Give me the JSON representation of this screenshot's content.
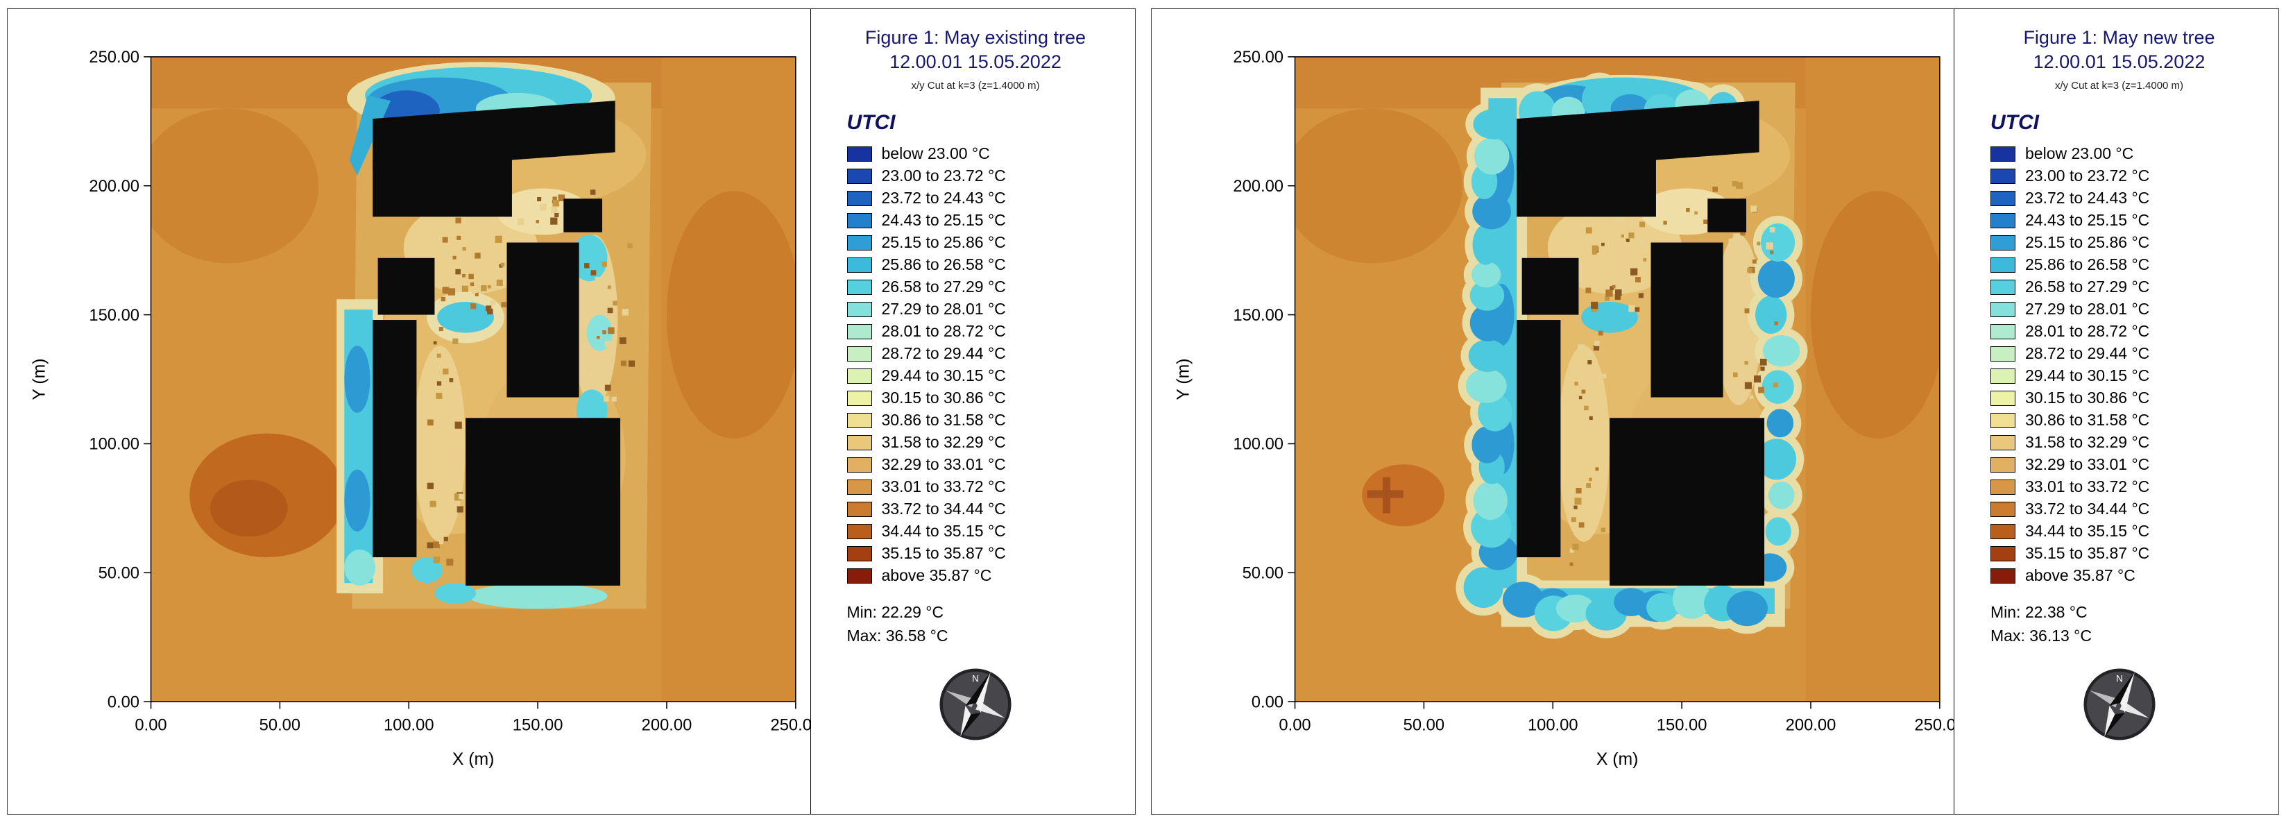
{
  "compass_label": "N",
  "figures": [
    {
      "title": "Figure 1: May existing tree",
      "subtitle": "12.00.01 15.05.2022",
      "cut_note": "x/y Cut at k=3 (z=1.4000 m)",
      "legend_title": "UTCI",
      "min_label": "Min: 22.29 °C",
      "max_label": "Max: 36.58 °C",
      "xlabel": "X (m)",
      "ylabel": "Y (m)",
      "variant": "existing"
    },
    {
      "title": "Figure 1: May new tree",
      "subtitle": "12.00.01 15.05.2022",
      "cut_note": "x/y Cut at k=3 (z=1.4000 m)",
      "legend_title": "UTCI",
      "min_label": "Min: 22.38 °C",
      "max_label": "Max: 36.13 °C",
      "xlabel": "X (m)",
      "ylabel": "Y (m)",
      "variant": "new"
    }
  ],
  "axes": {
    "ticks": [
      "0.00",
      "50.00",
      "100.00",
      "150.00",
      "200.00",
      "250.00"
    ],
    "tick_values": [
      0,
      50,
      100,
      150,
      200,
      250
    ],
    "range": [
      0,
      250
    ]
  },
  "legend_entries": [
    {
      "label": "below 23.00 °C",
      "color": "#1633a0"
    },
    {
      "label": "23.00 to 23.72 °C",
      "color": "#1a47b0"
    },
    {
      "label": "23.72 to 24.43 °C",
      "color": "#1e63c0"
    },
    {
      "label": "24.43 to 25.15 °C",
      "color": "#2380cc"
    },
    {
      "label": "25.15 to 25.86 °C",
      "color": "#2f9ed6"
    },
    {
      "label": "25.86 to 26.58 °C",
      "color": "#3db9dc"
    },
    {
      "label": "26.58 to 27.29 °C",
      "color": "#56cfdf"
    },
    {
      "label": "27.29 to 28.01 °C",
      "color": "#84e0da"
    },
    {
      "label": "28.01 to 28.72 °C",
      "color": "#aeead0"
    },
    {
      "label": "28.72 to 29.44 °C",
      "color": "#c8efc2"
    },
    {
      "label": "29.44 to 30.15 °C",
      "color": "#dcf2b2"
    },
    {
      "label": "30.15 to 30.86 °C",
      "color": "#ecf2a6"
    },
    {
      "label": "30.86 to 31.58 °C",
      "color": "#eedf92"
    },
    {
      "label": "31.58 to 32.29 °C",
      "color": "#e9c87c"
    },
    {
      "label": "32.29 to 33.01 °C",
      "color": "#e2b062"
    },
    {
      "label": "33.01 to 33.72 °C",
      "color": "#d89747"
    },
    {
      "label": "33.72 to 34.44 °C",
      "color": "#cb7b2e"
    },
    {
      "label": "34.44 to 35.15 °C",
      "color": "#ba5e1c"
    },
    {
      "label": "35.15 to 35.87 °C",
      "color": "#a43f12"
    },
    {
      "label": "above 35.87 °C",
      "color": "#871c0a"
    }
  ],
  "chart_data": [
    {
      "type": "heatmap",
      "title": "Figure 1: May existing tree",
      "datetime": "12.00.01 15.05.2022",
      "cut": "x/y Cut at k=3 (z=1.4000 m)",
      "variable": "UTCI",
      "unit": "°C",
      "xlabel": "X (m)",
      "ylabel": "Y (m)",
      "xlim": [
        0,
        250
      ],
      "ylim": [
        0,
        250
      ],
      "x_ticks": [
        0,
        50,
        100,
        150,
        200,
        250
      ],
      "y_ticks": [
        0,
        50,
        100,
        150,
        200,
        250
      ],
      "bin_edges_c": [
        23.0,
        23.72,
        24.43,
        25.15,
        25.86,
        26.58,
        27.29,
        28.01,
        28.72,
        29.44,
        30.15,
        30.86,
        31.58,
        32.29,
        33.01,
        33.72,
        34.44,
        35.15,
        35.87
      ],
      "min_c": 22.29,
      "max_c": 36.58,
      "legend_position": "right",
      "grid": false
    },
    {
      "type": "heatmap",
      "title": "Figure 1: May new tree",
      "datetime": "12.00.01 15.05.2022",
      "cut": "x/y Cut at k=3 (z=1.4000 m)",
      "variable": "UTCI",
      "unit": "°C",
      "xlabel": "X (m)",
      "ylabel": "Y (m)",
      "xlim": [
        0,
        250
      ],
      "ylim": [
        0,
        250
      ],
      "x_ticks": [
        0,
        50,
        100,
        150,
        200,
        250
      ],
      "y_ticks": [
        0,
        50,
        100,
        150,
        200,
        250
      ],
      "bin_edges_c": [
        23.0,
        23.72,
        24.43,
        25.15,
        25.86,
        26.58,
        27.29,
        28.01,
        28.72,
        29.44,
        30.15,
        30.86,
        31.58,
        32.29,
        33.01,
        33.72,
        34.44,
        35.15,
        35.87
      ],
      "min_c": 22.38,
      "max_c": 36.13,
      "legend_position": "right",
      "grid": false
    }
  ]
}
